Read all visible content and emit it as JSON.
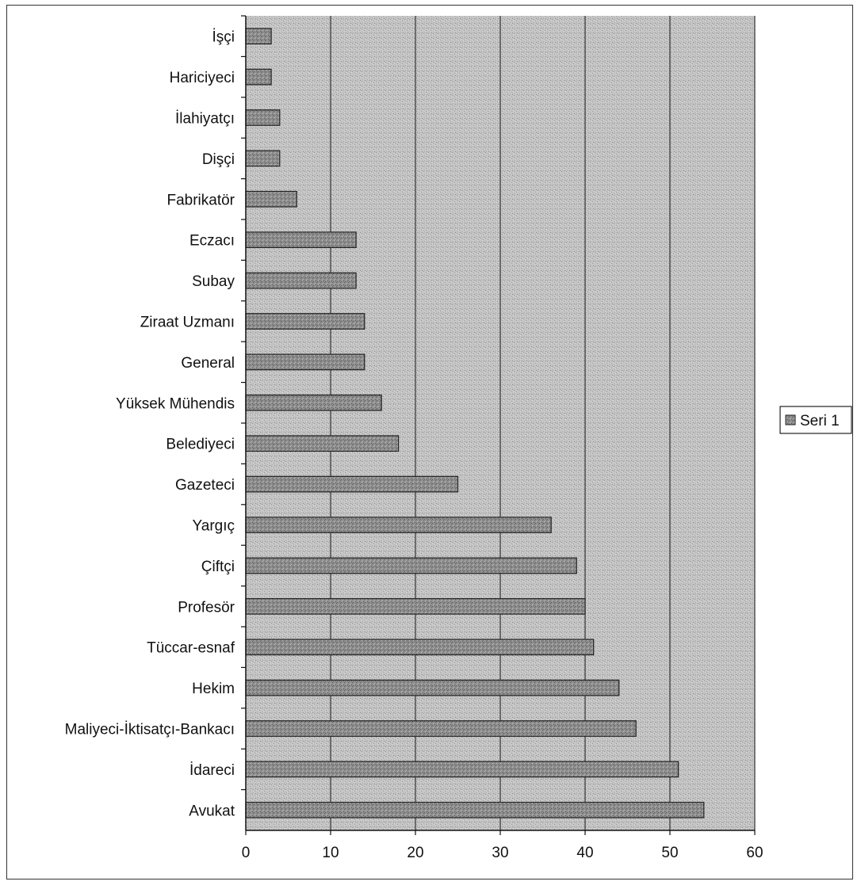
{
  "chart_data": {
    "type": "bar",
    "orientation": "horizontal",
    "title": "",
    "xlabel": "",
    "ylabel": "",
    "xlim": [
      0,
      60
    ],
    "x_ticks": [
      0,
      10,
      20,
      30,
      40,
      50,
      60
    ],
    "grid": "vertical major gridlines",
    "legend_position": "right",
    "categories": [
      "İşçi",
      "Hariciyeci",
      "İlahiyatçı",
      "Dişçi",
      "Fabrikatör",
      "Eczacı",
      "Subay",
      "Ziraat Uzmanı",
      "General",
      "Yüksek Mühendis",
      "Belediyeci",
      "Gazeteci",
      "Yargıç",
      "Çiftçi",
      "Profesör",
      "Tüccar-esnaf",
      "Hekim",
      "Maliyeci-İktisatçı-Bankacı",
      "İdareci",
      "Avukat"
    ],
    "series": [
      {
        "name": "Seri 1",
        "values": [
          3,
          3,
          4,
          4,
          6,
          13,
          13,
          14,
          14,
          16,
          18,
          25,
          36,
          39,
          40,
          41,
          44,
          46,
          51,
          54
        ]
      }
    ],
    "colors": {
      "plot_background": "#bdbdbd",
      "bar_fill": "#8a8a8a",
      "bar_stroke": "#222222",
      "gridline": "#333333"
    }
  }
}
